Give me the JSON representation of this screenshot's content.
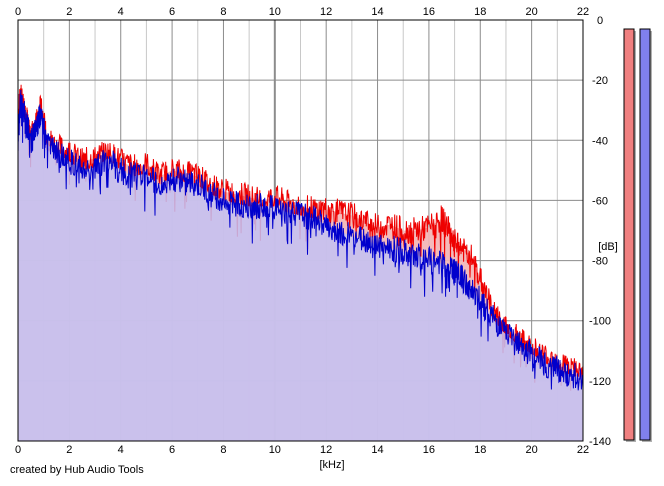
{
  "chart_data": {
    "type": "area",
    "title": "",
    "xlabel": "[kHz]",
    "ylabel": "[dB]",
    "xlim": [
      0,
      22
    ],
    "ylim": [
      -140,
      0
    ],
    "x_ticks": [
      0,
      2,
      4,
      6,
      8,
      10,
      12,
      14,
      16,
      18,
      20,
      22
    ],
    "y_ticks": [
      0,
      -20,
      -40,
      -60,
      -80,
      -100,
      -120,
      -140
    ],
    "grid": true,
    "legend": "none",
    "colors": {
      "series_a_line": "#ee0000",
      "series_a_fill": "#f3b4b4",
      "series_b_line": "#0000cc",
      "series_b_fill": "#c2c2f5",
      "grid_major": "#8c8c8c",
      "grid_minor": "#c8c8c8",
      "meter_a": "#f08080",
      "meter_b": "#8080ee"
    },
    "series": [
      {
        "x": [
          0,
          0.1,
          0.2,
          0.3,
          0.5,
          0.7,
          0.9,
          1.1,
          1.5,
          2,
          2.5,
          3,
          3.5,
          4,
          4.5,
          5,
          5.5,
          6,
          6.5,
          7,
          7.5,
          8,
          8.5,
          9,
          9.5,
          10,
          10.5,
          11,
          11.5,
          12,
          12.5,
          13,
          13.5,
          14,
          14.5,
          15,
          15.5,
          16,
          16.5,
          16.8,
          17,
          17.3,
          17.6,
          18,
          18.4,
          18.8,
          19.2,
          19.6,
          20,
          20.5,
          21,
          21.5,
          22
        ],
        "y": [
          -32,
          -25,
          -28,
          -31,
          -38,
          -35,
          -28,
          -39,
          -42,
          -44,
          -47,
          -46,
          -44,
          -47,
          -49,
          -48,
          -52,
          -50,
          -51,
          -52,
          -55,
          -57,
          -58,
          -59,
          -60,
          -59,
          -61,
          -62,
          -63,
          -63,
          -64,
          -65,
          -67,
          -69,
          -68,
          -70,
          -70,
          -69,
          -66,
          -70,
          -74,
          -76,
          -78,
          -86,
          -95,
          -101,
          -104,
          -107,
          -109,
          -112,
          -113,
          -116,
          -118
        ]
      },
      {
        "x": [
          0,
          0.1,
          0.2,
          0.3,
          0.5,
          0.7,
          0.9,
          1.1,
          1.5,
          2,
          2.5,
          3,
          3.5,
          4,
          4.5,
          5,
          5.5,
          6,
          6.5,
          7,
          7.5,
          8,
          8.5,
          9,
          9.5,
          10,
          10.5,
          11,
          11.5,
          12,
          12.5,
          13,
          13.5,
          14,
          14.5,
          15,
          15.5,
          16,
          16.5,
          16.8,
          17,
          17.3,
          17.6,
          18,
          18.4,
          18.8,
          19.2,
          19.6,
          20,
          20.5,
          21,
          21.5,
          22
        ],
        "y": [
          -36,
          -27,
          -30,
          -33,
          -40,
          -37,
          -30,
          -41,
          -44,
          -47,
          -50,
          -49,
          -46,
          -50,
          -52,
          -51,
          -55,
          -52,
          -54,
          -55,
          -58,
          -60,
          -61,
          -62,
          -62,
          -62,
          -64,
          -65,
          -66,
          -68,
          -70,
          -72,
          -73,
          -75,
          -76,
          -77,
          -78,
          -80,
          -81,
          -82,
          -84,
          -86,
          -89,
          -93,
          -98,
          -103,
          -106,
          -109,
          -111,
          -114,
          -116,
          -118,
          -119
        ]
      }
    ]
  },
  "ui": {
    "footer_text": "created by Hub Audio Tools",
    "meters": [
      {
        "level": 1.0,
        "color": "#f08080"
      },
      {
        "level": 1.0,
        "color": "#8080ee"
      }
    ]
  }
}
